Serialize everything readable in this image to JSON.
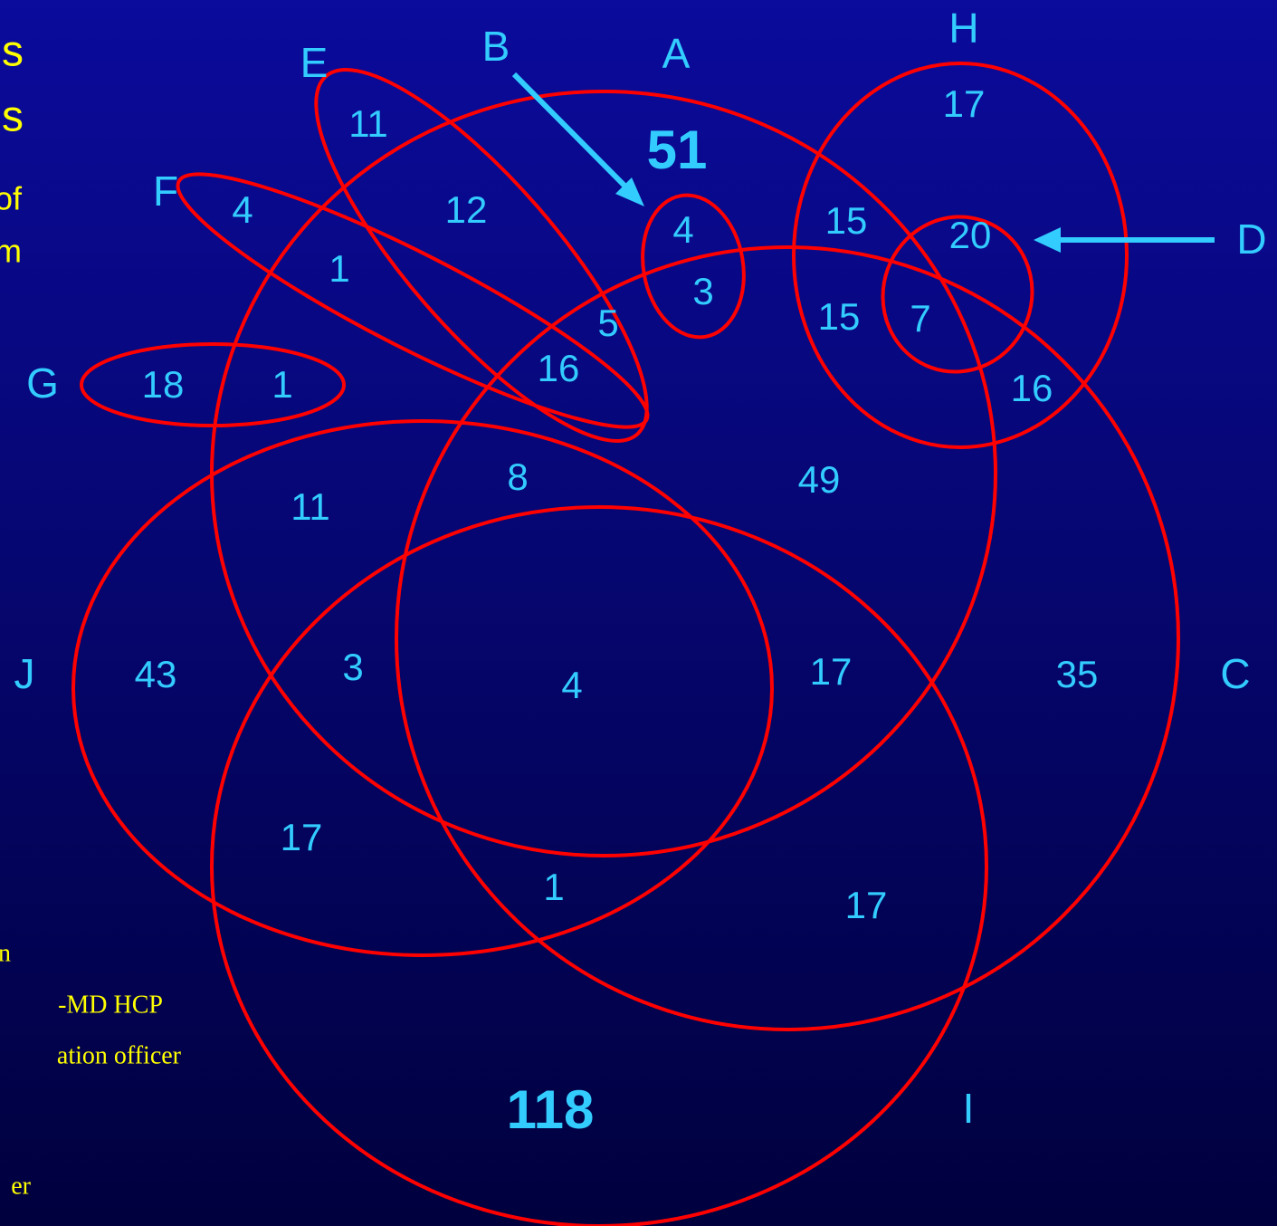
{
  "title_fragments": [
    "s",
    "s"
  ],
  "subtitle_fragments": [
    "of",
    "m"
  ],
  "legend_fragments": [
    "n",
    "-MD HCP",
    "ation officer",
    "er"
  ],
  "sets": [
    {
      "label": "A"
    },
    {
      "label": "B"
    },
    {
      "label": "C"
    },
    {
      "label": "D"
    },
    {
      "label": "E"
    },
    {
      "label": "F"
    },
    {
      "label": "G"
    },
    {
      "label": "H"
    },
    {
      "label": "I"
    },
    {
      "label": "J"
    }
  ],
  "regions": [
    {
      "count": 11
    },
    {
      "count": 51
    },
    {
      "count": 17
    },
    {
      "count": 4
    },
    {
      "count": 12
    },
    {
      "count": 4
    },
    {
      "count": 15
    },
    {
      "count": 20
    },
    {
      "count": 1
    },
    {
      "count": 3
    },
    {
      "count": 15
    },
    {
      "count": 7
    },
    {
      "count": 5
    },
    {
      "count": 16
    },
    {
      "count": 18
    },
    {
      "count": 1
    },
    {
      "count": 16
    },
    {
      "count": 8
    },
    {
      "count": 49
    },
    {
      "count": 11
    },
    {
      "count": 43
    },
    {
      "count": 3
    },
    {
      "count": 4
    },
    {
      "count": 17
    },
    {
      "count": 35
    },
    {
      "count": 17
    },
    {
      "count": 1
    },
    {
      "count": 17
    },
    {
      "count": 118
    }
  ]
}
